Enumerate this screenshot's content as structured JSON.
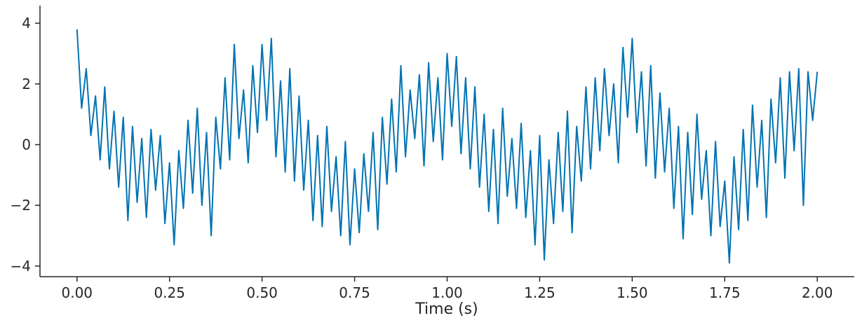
{
  "chart_data": {
    "type": "line",
    "x_label": "Time (s)",
    "color": "#0173b2",
    "xlim": [
      -0.1,
      2.1
    ],
    "ylim": [
      -4.35,
      4.58
    ],
    "xticks": [
      {
        "value": 0,
        "label": "0.00"
      },
      {
        "value": 0.25,
        "label": "0.25"
      },
      {
        "value": 0.5,
        "label": "0.50"
      },
      {
        "value": 0.75,
        "label": "0.75"
      },
      {
        "value": 1,
        "label": "1.00"
      },
      {
        "value": 1.25,
        "label": "1.25"
      },
      {
        "value": 1.5,
        "label": "1.50"
      },
      {
        "value": 1.75,
        "label": "1.75"
      },
      {
        "value": 2,
        "label": "2.00"
      }
    ],
    "yticks": [
      {
        "value": -4,
        "label": "−4"
      },
      {
        "value": -2,
        "label": "−2"
      },
      0,
      2,
      4
    ],
    "x": [
      0,
      0.0125,
      0.025,
      0.0375,
      0.05,
      0.0625,
      0.075,
      0.0875,
      0.1,
      0.1125,
      0.125,
      0.1375,
      0.15,
      0.1625,
      0.175,
      0.1875,
      0.2,
      0.2125,
      0.225,
      0.2375,
      0.25,
      0.2625,
      0.275,
      0.2875,
      0.3,
      0.3125,
      0.325,
      0.3375,
      0.35,
      0.3625,
      0.375,
      0.3875,
      0.4,
      0.4125,
      0.425,
      0.4375,
      0.45,
      0.4625,
      0.475,
      0.4875,
      0.5,
      0.5125,
      0.525,
      0.5375,
      0.55,
      0.5625,
      0.575,
      0.5875,
      0.6,
      0.6125,
      0.625,
      0.6375,
      0.65,
      0.6625,
      0.675,
      0.6875,
      0.7,
      0.7125,
      0.725,
      0.7375,
      0.75,
      0.7625,
      0.775,
      0.7875,
      0.8,
      0.8125,
      0.825,
      0.8375,
      0.85,
      0.8625,
      0.875,
      0.8875,
      0.9,
      0.9125,
      0.925,
      0.9375,
      0.95,
      0.9625,
      0.975,
      0.9875,
      1,
      1.0125,
      1.025,
      1.0375,
      1.05,
      1.0625,
      1.075,
      1.0875,
      1.1,
      1.1125,
      1.125,
      1.1375,
      1.15,
      1.1625,
      1.175,
      1.1875,
      1.2,
      1.2125,
      1.225,
      1.2375,
      1.25,
      1.2625,
      1.275,
      1.2875,
      1.3,
      1.3125,
      1.325,
      1.3375,
      1.35,
      1.3625,
      1.375,
      1.3875,
      1.4,
      1.4125,
      1.425,
      1.4375,
      1.45,
      1.4625,
      1.475,
      1.4875,
      1.5,
      1.5125,
      1.525,
      1.5375,
      1.55,
      1.5625,
      1.575,
      1.5875,
      1.6,
      1.6125,
      1.625,
      1.6375,
      1.65,
      1.6625,
      1.675,
      1.6875,
      1.7,
      1.7125,
      1.725,
      1.7375,
      1.75,
      1.7625,
      1.775,
      1.7875,
      1.8,
      1.8125,
      1.825,
      1.8375,
      1.85,
      1.8625,
      1.875,
      1.8875,
      1.9,
      1.9125,
      1.925,
      1.9375,
      1.95,
      1.9625,
      1.975,
      1.9875,
      2
    ],
    "values": [
      3.8,
      1.2,
      2.5,
      0.3,
      1.6,
      -0.5,
      1.9,
      -0.8,
      1.1,
      -1.4,
      0.9,
      -2.5,
      0.6,
      -1.9,
      0.2,
      -2.4,
      0.5,
      -1.5,
      0.3,
      -2.6,
      -0.6,
      -3.3,
      -0.2,
      -2.1,
      0.8,
      -1.6,
      1.2,
      -2.0,
      0.4,
      -3.0,
      0.9,
      -0.8,
      2.2,
      -0.5,
      3.3,
      0.2,
      1.8,
      -0.6,
      2.6,
      0.4,
      3.3,
      0.8,
      3.5,
      -0.4,
      2.1,
      -0.9,
      2.5,
      -1.2,
      1.6,
      -1.5,
      0.8,
      -2.5,
      0.3,
      -2.7,
      0.6,
      -2.2,
      -0.4,
      -3.0,
      0.1,
      -3.3,
      -0.8,
      -2.9,
      -0.3,
      -2.2,
      0.4,
      -2.8,
      0.9,
      -1.3,
      1.5,
      -0.9,
      2.6,
      -0.4,
      1.8,
      0.2,
      2.3,
      -0.7,
      2.7,
      0.1,
      2.2,
      -0.5,
      3.0,
      0.6,
      2.9,
      -0.3,
      2.2,
      -0.8,
      1.9,
      -1.4,
      1.0,
      -2.2,
      0.5,
      -2.6,
      1.2,
      -1.7,
      0.2,
      -2.1,
      0.7,
      -2.4,
      -0.2,
      -3.3,
      0.3,
      -3.8,
      -0.5,
      -2.6,
      0.4,
      -2.2,
      1.1,
      -2.9,
      0.6,
      -1.2,
      1.9,
      -0.8,
      2.2,
      -0.2,
      2.5,
      0.3,
      2.0,
      -0.6,
      3.2,
      0.9,
      3.5,
      0.4,
      2.4,
      -0.7,
      2.6,
      -1.1,
      1.7,
      -0.9,
      1.2,
      -2.1,
      0.6,
      -3.1,
      0.4,
      -2.3,
      1.0,
      -1.8,
      -0.2,
      -3.0,
      0.1,
      -2.7,
      -1.2,
      -3.9,
      -0.4,
      -2.8,
      0.5,
      -2.5,
      1.3,
      -1.4,
      0.8,
      -2.4,
      1.5,
      -0.6,
      2.2,
      -1.1,
      2.4,
      -0.2,
      2.5,
      -2.0,
      2.4,
      0.8,
      2.4
    ]
  }
}
